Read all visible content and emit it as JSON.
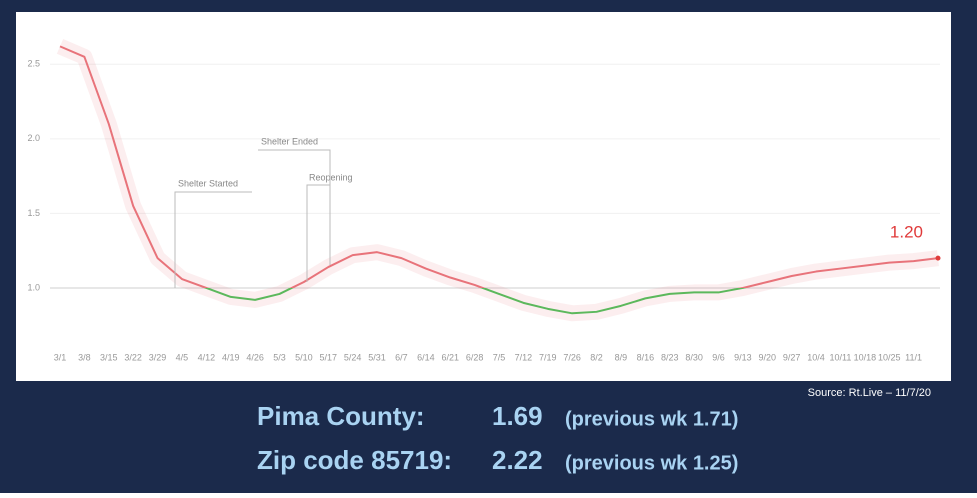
{
  "chart_data": {
    "type": "line",
    "categories": [
      "3/1",
      "3/8",
      "3/15",
      "3/22",
      "3/29",
      "4/5",
      "4/12",
      "4/19",
      "4/26",
      "5/3",
      "5/10",
      "5/17",
      "5/24",
      "5/31",
      "6/7",
      "6/14",
      "6/21",
      "6/28",
      "7/5",
      "7/12",
      "7/19",
      "7/26",
      "8/2",
      "8/9",
      "8/16",
      "8/23",
      "8/30",
      "9/6",
      "9/13",
      "9/20",
      "9/27",
      "10/4",
      "10/11",
      "10/18",
      "10/25",
      "11/1",
      null
    ],
    "values": [
      2.62,
      2.55,
      2.1,
      1.55,
      1.2,
      1.06,
      1.0,
      0.94,
      0.92,
      0.96,
      1.04,
      1.14,
      1.22,
      1.24,
      1.2,
      1.13,
      1.07,
      1.02,
      0.96,
      0.9,
      0.86,
      0.83,
      0.84,
      0.88,
      0.93,
      0.96,
      0.97,
      0.97,
      1.0,
      1.04,
      1.08,
      1.11,
      1.13,
      1.15,
      1.17,
      1.18,
      1.2
    ],
    "end_label": "1.20",
    "above_color": "#e8737a",
    "below_color": "#5cb85c",
    "threshold": 1,
    "ylim": [
      0.6,
      2.75
    ],
    "yticks": [
      {
        "value": 1,
        "label": "1.0"
      },
      {
        "value": 1.5,
        "label": "1.5"
      },
      {
        "value": 2,
        "label": "2.0"
      },
      {
        "value": 2.5,
        "label": "2.5"
      }
    ],
    "grid": true,
    "annotations": [
      "Shelter Started",
      "Shelter Ended",
      "Reopening"
    ],
    "source": "Source: Rt.Live – 11/7/20"
  },
  "summary": [
    {
      "label": "Pima County:",
      "value": "1.69",
      "note": "(previous wk 1.71)"
    },
    {
      "label": "Zip code 85719:",
      "value": "2.22",
      "note": "(previous wk 1.25)"
    }
  ]
}
